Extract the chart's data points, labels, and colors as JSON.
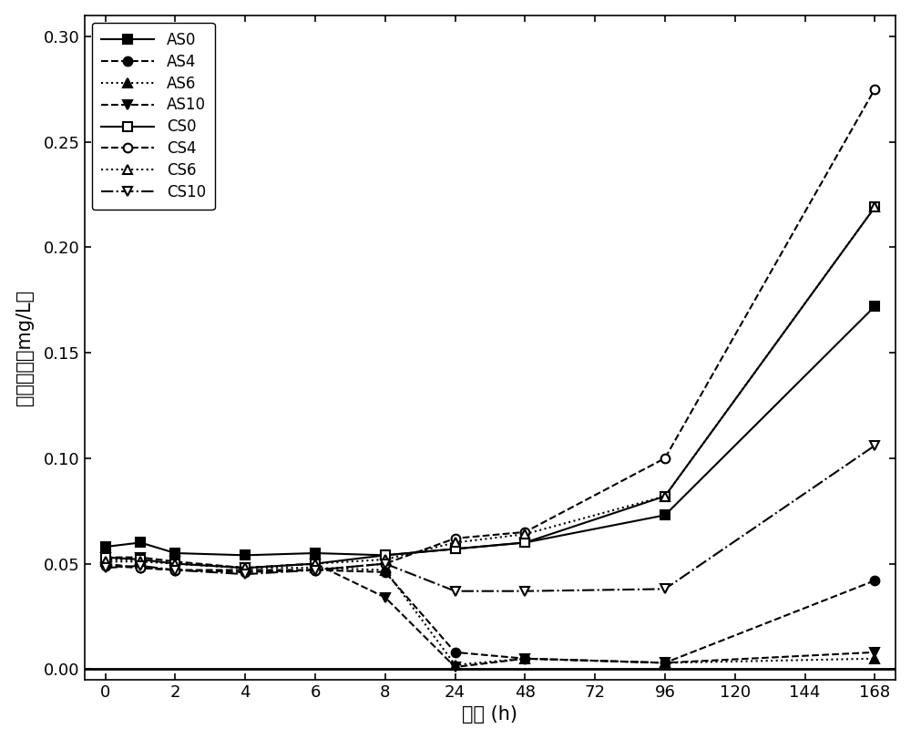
{
  "x_positions": [
    0,
    1,
    2,
    3,
    4,
    5,
    6,
    7,
    8,
    9,
    10,
    11
  ],
  "x_labels": [
    "0",
    "2",
    "4",
    "6",
    "8",
    "24",
    "48",
    "72",
    "96",
    "120",
    "144",
    "168"
  ],
  "x_hours": [
    0,
    2,
    4,
    6,
    8,
    24,
    48,
    72,
    96,
    120,
    144,
    168
  ],
  "series": {
    "AS0": {
      "hours": [
        0,
        1,
        2,
        4,
        6,
        8,
        24,
        48,
        96,
        168
      ],
      "y": [
        0.058,
        0.06,
        0.055,
        0.054,
        0.055,
        0.054,
        0.057,
        0.06,
        0.073,
        0.172
      ],
      "linestyle": "-",
      "marker": "s",
      "fillstyle": "full"
    },
    "AS4": {
      "hours": [
        0,
        1,
        2,
        4,
        6,
        8,
        24,
        48,
        96,
        168
      ],
      "y": [
        0.05,
        0.048,
        0.047,
        0.047,
        0.047,
        0.046,
        0.008,
        0.005,
        0.003,
        0.042
      ],
      "linestyle": "--",
      "marker": "o",
      "fillstyle": "full"
    },
    "AS6": {
      "hours": [
        0,
        1,
        2,
        4,
        6,
        8,
        24,
        48,
        96,
        168
      ],
      "y": [
        0.052,
        0.052,
        0.05,
        0.048,
        0.048,
        0.047,
        0.002,
        0.005,
        0.003,
        0.005
      ],
      "linestyle": ":",
      "marker": "^",
      "fillstyle": "full"
    },
    "AS10": {
      "hours": [
        0,
        1,
        2,
        4,
        6,
        8,
        24,
        48,
        96,
        168
      ],
      "y": [
        0.053,
        0.053,
        0.051,
        0.048,
        0.05,
        0.034,
        0.001,
        0.005,
        0.003,
        0.008
      ],
      "linestyle": "--",
      "marker": "v",
      "fillstyle": "full"
    },
    "CS0": {
      "hours": [
        0,
        1,
        2,
        4,
        6,
        8,
        24,
        48,
        96,
        168
      ],
      "y": [
        0.053,
        0.052,
        0.05,
        0.048,
        0.05,
        0.054,
        0.057,
        0.06,
        0.082,
        0.219
      ],
      "linestyle": "-",
      "marker": "s",
      "fillstyle": "none"
    },
    "CS4": {
      "hours": [
        0,
        1,
        2,
        4,
        6,
        8,
        24,
        48,
        96,
        168
      ],
      "y": [
        0.049,
        0.048,
        0.047,
        0.046,
        0.047,
        0.05,
        0.062,
        0.065,
        0.1,
        0.275
      ],
      "linestyle": "--",
      "marker": "o",
      "fillstyle": "none"
    },
    "CS6": {
      "hours": [
        0,
        1,
        2,
        4,
        6,
        8,
        24,
        48,
        96,
        168
      ],
      "y": [
        0.051,
        0.051,
        0.05,
        0.048,
        0.05,
        0.052,
        0.06,
        0.064,
        0.082,
        0.219
      ],
      "linestyle": ":",
      "marker": "^",
      "fillstyle": "none"
    },
    "CS10": {
      "hours": [
        0,
        1,
        2,
        4,
        6,
        8,
        24,
        48,
        96,
        168
      ],
      "y": [
        0.048,
        0.049,
        0.047,
        0.045,
        0.047,
        0.05,
        0.037,
        0.037,
        0.038,
        0.106
      ],
      "linestyle": "-.",
      "marker": "v",
      "fillstyle": "none"
    }
  },
  "xlabel": "时间 (h)",
  "ylabel": "亚硝酸盐（mg/L）",
  "xlim": [
    -0.3,
    11.3
  ],
  "ylim": [
    -0.005,
    0.31
  ],
  "yticks": [
    0.0,
    0.05,
    0.1,
    0.15,
    0.2,
    0.25,
    0.3
  ],
  "line_width": 1.5,
  "marker_size": 7
}
